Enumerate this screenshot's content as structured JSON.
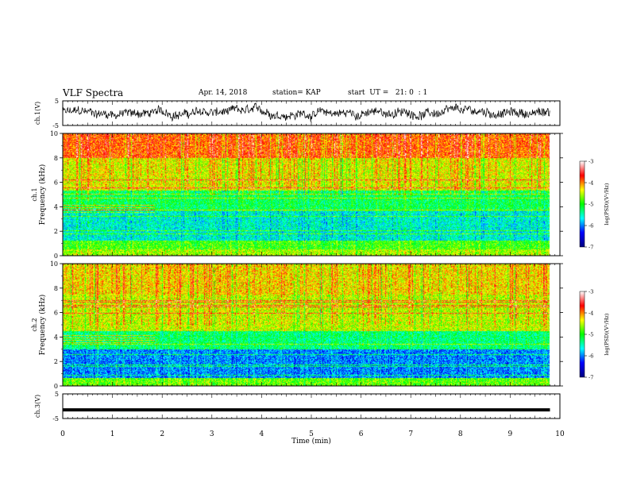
{
  "header": {
    "title": "VLF Spectra",
    "date": "Apr. 14, 2018",
    "station": "station= KAP",
    "start_time": "start  UT =   21: 0  : 1"
  },
  "chart_data": [
    {
      "type": "line",
      "panel": "ch1-waveform",
      "ylabel": "ch.1(V)",
      "ylim": [
        -5,
        5
      ],
      "yticks": [
        "5",
        "-5"
      ],
      "xlim": [
        0,
        10
      ],
      "color": "#000000"
    },
    {
      "type": "heatmap",
      "panel": "ch1-spectrogram",
      "ylabel": "ch.1\nFrequency  (kHz)",
      "ylim": [
        0,
        10
      ],
      "yticks": [
        "0",
        "2",
        "4",
        "6",
        "8",
        "10"
      ],
      "xlim": [
        0,
        10
      ],
      "data_end_min": 9.8,
      "colorbar": {
        "label": "log(PSD)(V²/Hz)",
        "range": [
          -7,
          -3
        ],
        "ticks": [
          "-3",
          "-4",
          "-5",
          "-6",
          "-7"
        ],
        "colors": [
          "#00007f",
          "#0000ff",
          "#00ffff",
          "#00ff00",
          "#ffff00",
          "#ff0000",
          "#ffffff"
        ]
      },
      "description_levels": [
        {
          "f0": 0,
          "f1": 0.5,
          "level": -4.6
        },
        {
          "f0": 0.5,
          "f1": 1.2,
          "level": -4.9
        },
        {
          "f0": 1.2,
          "f1": 3.6,
          "level": -5.6
        },
        {
          "f0": 3.6,
          "f1": 5.4,
          "level": -5.2
        },
        {
          "f0": 5.4,
          "f1": 8.0,
          "level": -4.4
        },
        {
          "f0": 8.0,
          "f1": 10.0,
          "level": -3.9
        }
      ]
    },
    {
      "type": "heatmap",
      "panel": "ch2-spectrogram",
      "ylabel": "ch.2\nFrequency  (kHz)",
      "ylim": [
        0,
        10
      ],
      "yticks": [
        "0",
        "2",
        "4",
        "6",
        "8",
        "10"
      ],
      "xlim": [
        0,
        10
      ],
      "data_end_min": 9.8,
      "colorbar": {
        "label": "log(PSD)(V²/Hz)",
        "range": [
          -7,
          -3
        ],
        "ticks": [
          "-3",
          "-4",
          "-5",
          "-6",
          "-7"
        ],
        "colors": [
          "#00007f",
          "#0000ff",
          "#00ffff",
          "#00ff00",
          "#ffff00",
          "#ff0000",
          "#ffffff"
        ]
      },
      "description_levels": [
        {
          "f0": 0,
          "f1": 0.6,
          "level": -4.8
        },
        {
          "f0": 0.6,
          "f1": 3.0,
          "level": -6.0
        },
        {
          "f0": 3.0,
          "f1": 4.5,
          "level": -5.3
        },
        {
          "f0": 4.5,
          "f1": 7.5,
          "level": -4.5
        },
        {
          "f0": 7.5,
          "f1": 10.0,
          "level": -4.3
        }
      ]
    },
    {
      "type": "line",
      "panel": "ch3-waveform",
      "ylabel": "ch.3(V)",
      "ylim": [
        -5,
        5
      ],
      "yticks": [
        "5",
        "-5"
      ],
      "xlim": [
        0,
        10
      ],
      "constant_value": -1.5,
      "color": "#000000"
    }
  ],
  "xaxis": {
    "label": "Time  (min)",
    "ticks": [
      "0",
      "1",
      "2",
      "3",
      "4",
      "5",
      "6",
      "7",
      "8",
      "9",
      "10"
    ]
  }
}
